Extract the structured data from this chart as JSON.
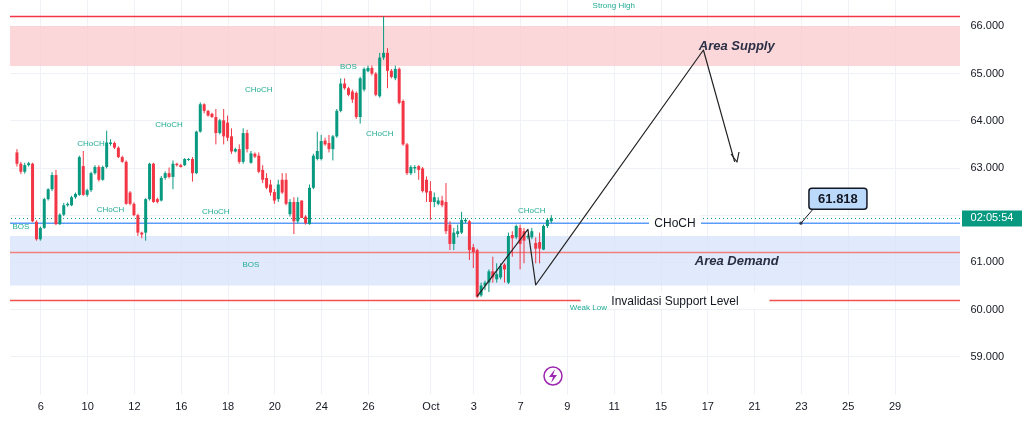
{
  "chart_data": {
    "type": "candlestick",
    "categories": [
      null,
      null,
      null,
      null,
      null,
      null,
      "6",
      null,
      null,
      null,
      null,
      null,
      null,
      null,
      null,
      null,
      null,
      null,
      "10",
      null,
      null,
      null,
      null,
      null,
      null,
      null,
      null,
      null,
      null,
      null,
      "12",
      null,
      null,
      null,
      null,
      null,
      null,
      null,
      null,
      null,
      null,
      null,
      "16",
      null,
      null,
      null,
      null,
      null,
      null,
      null,
      null,
      null,
      null,
      null,
      "18",
      null,
      null,
      null,
      null,
      null,
      null,
      null,
      null,
      null,
      null,
      null,
      "20",
      null,
      null,
      null,
      null,
      null,
      null,
      null,
      null,
      null,
      null,
      null,
      "24",
      null,
      null,
      null,
      null,
      null,
      null,
      null,
      null,
      null,
      null,
      null,
      "26",
      null,
      null,
      null,
      null,
      null,
      null,
      null,
      null,
      null,
      null,
      null,
      null,
      null,
      null,
      null,
      "Oct",
      null,
      null,
      null,
      null,
      null,
      null,
      null,
      null,
      null,
      null,
      "3",
      null,
      null,
      null,
      null,
      null,
      null,
      null,
      null,
      null,
      null,
      null,
      "7",
      null,
      null,
      null,
      null,
      null,
      null,
      null,
      null,
      null,
      null,
      null,
      "9",
      null,
      null,
      null,
      null,
      null,
      null,
      null,
      null,
      null,
      null,
      null,
      "11",
      null,
      null,
      null,
      null,
      null,
      null,
      null,
      null,
      null,
      null,
      null,
      "15",
      null,
      null,
      null,
      null,
      null,
      null,
      null,
      null,
      null,
      null,
      null,
      "17",
      null,
      null,
      null,
      null,
      null,
      null,
      null,
      null,
      null,
      null,
      null,
      "21",
      null,
      null,
      null,
      null,
      null,
      null,
      null,
      null,
      null,
      null,
      null,
      "23",
      null,
      null,
      null,
      null,
      null,
      null,
      null,
      null,
      null,
      null,
      null,
      "25",
      null,
      null,
      null,
      null,
      null,
      null,
      null,
      null,
      null,
      null,
      null,
      "29",
      null,
      null,
      null,
      null,
      null,
      null,
      null,
      null,
      null,
      null,
      null,
      null,
      null,
      null,
      null
    ],
    "ohlc": [
      [
        63.32,
        63.39,
        63.02,
        63.08
      ],
      [
        63.08,
        63.12,
        62.86,
        62.91
      ],
      [
        62.91,
        63.1,
        62.87,
        63.05
      ],
      [
        63.05,
        63.12,
        63.02,
        63.09
      ],
      [
        63.08,
        63.1,
        61.84,
        61.86
      ],
      [
        61.85,
        61.88,
        61.45,
        61.48
      ],
      [
        61.48,
        61.75,
        61.45,
        61.72
      ],
      [
        61.72,
        62.36,
        61.7,
        62.33
      ],
      [
        62.33,
        62.56,
        62.3,
        62.54
      ],
      [
        62.54,
        62.9,
        62.5,
        62.84
      ],
      [
        62.84,
        62.95,
        61.78,
        61.8
      ],
      [
        61.8,
        62.03,
        61.78,
        62.0
      ],
      [
        62.0,
        62.25,
        61.97,
        62.2
      ],
      [
        62.2,
        62.26,
        62.17,
        62.23
      ],
      [
        62.2,
        62.4,
        62.18,
        62.37
      ],
      [
        62.37,
        62.47,
        62.34,
        62.44
      ],
      [
        62.42,
        63.25,
        62.4,
        63.22
      ],
      [
        63.03,
        63.35,
        62.4,
        62.42
      ],
      [
        62.42,
        62.55,
        62.38,
        62.52
      ],
      [
        62.52,
        62.91,
        62.48,
        62.88
      ],
      [
        62.88,
        63.05,
        62.85,
        63.01
      ],
      [
        63.01,
        63.05,
        62.7,
        62.74
      ],
      [
        62.74,
        63.04,
        62.72,
        63.01
      ],
      [
        63.01,
        63.78,
        62.98,
        63.53
      ],
      [
        63.5,
        63.6,
        63.46,
        63.53
      ],
      [
        63.52,
        63.55,
        63.39,
        63.42
      ],
      [
        63.42,
        63.45,
        63.2,
        63.22
      ],
      [
        63.22,
        63.25,
        63.1,
        63.12
      ],
      [
        63.12,
        63.15,
        62.21,
        62.23
      ],
      [
        62.47,
        62.5,
        62.2,
        62.23
      ],
      [
        62.23,
        62.26,
        61.97,
        61.99
      ],
      [
        61.99,
        62.02,
        61.55,
        61.62
      ],
      [
        61.62,
        61.64,
        61.5,
        61.58
      ],
      [
        61.62,
        62.35,
        61.45,
        62.33
      ],
      [
        62.33,
        63.1,
        62.3,
        63.08
      ],
      [
        63.08,
        63.1,
        62.25,
        62.27
      ],
      [
        62.33,
        62.36,
        62.24,
        62.27
      ],
      [
        62.3,
        62.82,
        62.28,
        62.78
      ],
      [
        62.78,
        62.92,
        62.74,
        62.88
      ],
      [
        62.88,
        63.0,
        62.77,
        62.8
      ],
      [
        62.8,
        63.15,
        62.54,
        63.08
      ],
      [
        63.08,
        63.1,
        63.02,
        63.05
      ],
      [
        63.05,
        63.08,
        63.0,
        63.01
      ],
      [
        63.05,
        63.2,
        63.03,
        63.18
      ],
      [
        63.16,
        63.2,
        63.14,
        63.18
      ],
      [
        63.18,
        63.22,
        62.7,
        62.88
      ],
      [
        62.88,
        63.78,
        62.86,
        63.76
      ],
      [
        63.76,
        64.38,
        63.74,
        64.34
      ],
      [
        64.34,
        64.36,
        64.15,
        64.2
      ],
      [
        64.2,
        64.22,
        64.08,
        64.1
      ],
      [
        64.14,
        64.16,
        64.05,
        64.07
      ],
      [
        64.07,
        64.24,
        63.49,
        63.73
      ],
      [
        63.73,
        64.03,
        63.7,
        64.0
      ],
      [
        64.0,
        64.24,
        63.49,
        63.66
      ],
      [
        63.95,
        64.1,
        63.56,
        63.63
      ],
      [
        63.66,
        63.83,
        63.29,
        63.34
      ],
      [
        63.34,
        63.42,
        63.32,
        63.39
      ],
      [
        63.39,
        63.49,
        63.08,
        63.12
      ],
      [
        63.12,
        63.83,
        63.08,
        63.73
      ],
      [
        63.73,
        63.8,
        63.32,
        63.39
      ],
      [
        63.1,
        63.35,
        63.08,
        63.3
      ],
      [
        63.29,
        63.32,
        63.2,
        63.23
      ],
      [
        63.25,
        63.32,
        62.88,
        62.91
      ],
      [
        62.95,
        63.05,
        62.67,
        62.74
      ],
      [
        62.78,
        62.88,
        62.54,
        62.57
      ],
      [
        62.64,
        62.74,
        62.4,
        62.47
      ],
      [
        62.48,
        62.54,
        62.23,
        62.3
      ],
      [
        62.33,
        62.74,
        62.27,
        62.64
      ],
      [
        62.74,
        62.88,
        62.44,
        62.47
      ],
      [
        62.74,
        62.88,
        62.2,
        62.23
      ],
      [
        62.01,
        62.33,
        61.96,
        62.27
      ],
      [
        62.27,
        62.37,
        61.59,
        61.86
      ],
      [
        61.86,
        62.37,
        61.82,
        62.27
      ],
      [
        62.3,
        62.3,
        61.93,
        61.93
      ],
      [
        61.96,
        61.99,
        61.79,
        61.82
      ],
      [
        61.8,
        62.64,
        61.79,
        62.57
      ],
      [
        62.57,
        63.29,
        62.54,
        63.25
      ],
      [
        63.18,
        63.76,
        63.15,
        63.35
      ],
      [
        63.18,
        63.69,
        63.15,
        63.56
      ],
      [
        63.57,
        63.63,
        63.46,
        63.49
      ],
      [
        63.52,
        63.69,
        63.32,
        63.39
      ],
      [
        63.39,
        63.69,
        63.15,
        63.66
      ],
      [
        63.66,
        64.24,
        63.63,
        64.2
      ],
      [
        64.2,
        64.89,
        64.17,
        64.78
      ],
      [
        64.78,
        64.89,
        64.65,
        64.68
      ],
      [
        64.68,
        64.71,
        64.51,
        64.54
      ],
      [
        64.61,
        64.65,
        64.37,
        64.44
      ],
      [
        64.58,
        64.61,
        64.03,
        64.07
      ],
      [
        64.07,
        64.92,
        63.93,
        64.89
      ],
      [
        64.65,
        65.12,
        64.61,
        65.09
      ],
      [
        65.04,
        65.16,
        65.02,
        65.11
      ],
      [
        65.11,
        65.16,
        64.95,
        64.99
      ],
      [
        64.99,
        65.02,
        64.51,
        64.54
      ],
      [
        64.51,
        65.43,
        64.48,
        65.33
      ],
      [
        65.33,
        66.2,
        65.28,
        65.43
      ],
      [
        65.43,
        65.53,
        64.68,
        65.05
      ],
      [
        65.05,
        65.09,
        64.89,
        64.92
      ],
      [
        64.89,
        65.16,
        64.85,
        65.09
      ],
      [
        65.09,
        65.12,
        64.34,
        64.37
      ],
      [
        64.41,
        64.44,
        63.46,
        63.49
      ],
      [
        63.49,
        63.52,
        62.84,
        62.88
      ],
      [
        62.88,
        63.05,
        62.84,
        63.01
      ],
      [
        62.98,
        63.05,
        62.88,
        63.01
      ],
      [
        63.03,
        63.05,
        62.74,
        62.95
      ],
      [
        62.98,
        63.01,
        62.47,
        62.5
      ],
      [
        62.74,
        62.81,
        62.27,
        62.47
      ],
      [
        62.5,
        62.71,
        61.89,
        62.27
      ],
      [
        62.27,
        62.47,
        62.16,
        62.37
      ],
      [
        62.23,
        62.37,
        62.2,
        62.3
      ],
      [
        62.3,
        62.4,
        62.16,
        62.2
      ],
      [
        62.27,
        62.67,
        61.59,
        61.65
      ],
      [
        61.79,
        61.86,
        61.25,
        61.38
      ],
      [
        61.38,
        61.72,
        61.25,
        61.62
      ],
      [
        61.59,
        61.79,
        61.52,
        61.65
      ],
      [
        61.62,
        62.06,
        61.59,
        61.89
      ],
      [
        61.86,
        61.93,
        61.82,
        61.89
      ],
      [
        61.86,
        61.89,
        61.04,
        61.25
      ],
      [
        61.31,
        61.38,
        60.87,
        61.21
      ],
      [
        61.25,
        61.28,
        60.23,
        60.26
      ],
      [
        60.29,
        60.56,
        60.26,
        60.5
      ],
      [
        60.5,
        60.6,
        60.4,
        60.56
      ],
      [
        60.56,
        60.84,
        60.36,
        60.8
      ],
      [
        60.8,
        61.11,
        60.56,
        60.67
      ],
      [
        60.63,
        60.97,
        60.56,
        60.74
      ],
      [
        60.67,
        60.97,
        60.63,
        60.91
      ],
      [
        60.94,
        60.97,
        60.56,
        60.84
      ],
      [
        60.56,
        61.62,
        60.53,
        61.55
      ],
      [
        61.57,
        61.65,
        61.11,
        61.5
      ],
      [
        61.52,
        61.79,
        61.48,
        61.76
      ],
      [
        61.72,
        61.79,
        60.84,
        61.38
      ],
      [
        61.65,
        61.72,
        60.97,
        61.45
      ],
      [
        61.52,
        61.59,
        61.48,
        61.55
      ],
      [
        61.52,
        61.72,
        61.48,
        61.65
      ],
      [
        61.4,
        61.52,
        60.97,
        61.28
      ],
      [
        61.42,
        61.62,
        60.97,
        61.28
      ],
      [
        61.26,
        61.79,
        61.25,
        61.76
      ],
      [
        61.76,
        61.93,
        61.72,
        61.89
      ],
      [
        61.86,
        61.99,
        61.82,
        61.93
      ],
      null,
      null,
      null,
      null,
      null,
      null,
      null,
      null,
      null,
      null,
      null,
      null,
      null,
      null,
      null,
      null,
      null,
      null,
      null,
      null,
      null,
      null,
      null,
      null,
      null,
      null,
      null,
      null,
      null,
      null,
      null,
      null,
      null,
      null,
      null,
      null,
      null,
      null,
      null,
      null,
      null,
      null,
      null,
      null,
      null,
      null,
      null,
      null,
      null,
      null,
      null,
      null,
      null,
      null,
      null,
      null,
      null,
      null,
      null,
      null,
      null,
      null,
      null,
      null,
      null,
      null,
      null,
      null,
      null,
      null,
      null,
      null,
      null,
      null,
      null,
      null,
      null,
      null,
      null,
      null,
      null,
      null,
      null,
      null,
      null,
      null,
      null,
      null,
      null,
      null,
      null,
      null,
      null,
      null,
      null,
      null,
      null,
      null,
      null,
      null,
      null,
      null,
      null
    ],
    "series": [
      {
        "type": "line",
        "color": "#222222",
        "values": [
          null,
          null,
          null,
          null,
          null,
          null,
          null,
          null,
          null,
          null,
          null,
          null,
          null,
          null,
          null,
          null,
          null,
          null,
          null,
          null,
          null,
          null,
          null,
          null,
          null,
          null,
          null,
          null,
          null,
          null,
          null,
          null,
          null,
          null,
          null,
          null,
          null,
          null,
          null,
          null,
          null,
          null,
          null,
          null,
          null,
          null,
          null,
          null,
          null,
          null,
          null,
          null,
          null,
          null,
          null,
          null,
          null,
          null,
          null,
          null,
          null,
          null,
          null,
          null,
          null,
          null,
          null,
          null,
          null,
          null,
          null,
          null,
          null,
          null,
          null,
          null,
          null,
          null,
          null,
          null,
          null,
          null,
          null,
          null,
          null,
          null,
          null,
          null,
          null,
          null,
          null,
          null,
          null,
          null,
          null,
          null,
          null,
          null,
          null,
          null,
          null,
          null,
          null,
          null,
          null,
          null,
          null,
          null,
          null,
          null,
          null,
          null,
          null,
          null,
          null,
          null,
          null,
          null,
          60.27,
          null,
          null,
          null,
          null,
          null,
          null,
          null,
          null,
          null,
          null,
          null,
          null,
          61.69,
          null,
          60.51,
          null,
          null,
          null,
          null,
          null,
          null,
          null,
          null,
          null,
          null,
          null,
          null,
          null,
          null,
          null,
          null,
          null,
          null,
          null,
          null,
          null,
          null,
          null,
          null,
          null,
          null,
          null,
          null,
          null,
          null,
          null,
          null,
          null,
          null,
          null,
          null,
          null,
          null,
          null,
          null,
          null,
          null,
          65.49,
          null,
          null,
          null,
          null,
          null,
          null,
          null,
          63.12,
          null,
          null,
          null,
          null,
          null,
          null,
          null,
          null,
          null,
          null,
          null,
          null,
          null,
          null,
          null,
          null,
          null,
          null,
          null,
          null,
          null,
          null,
          null,
          null,
          null,
          null,
          null,
          null,
          null,
          null,
          null,
          null,
          null,
          null,
          null,
          null,
          null,
          null,
          null,
          null,
          null,
          null,
          null,
          null,
          null,
          null,
          null,
          null,
          null,
          null,
          null,
          null,
          null,
          null,
          null,
          null
        ]
      }
    ],
    "ylim": [
      58.2,
      66.55
    ],
    "yticks": [
      {
        "value": 59,
        "label": "59.000"
      },
      {
        "value": 60,
        "label": "60.000"
      },
      {
        "value": 61,
        "label": "61.000"
      },
      {
        "value": 62,
        "label": null
      },
      {
        "value": 63,
        "label": "63.000"
      },
      {
        "value": 64,
        "label": "64.000"
      },
      {
        "value": 65,
        "label": "65.000"
      },
      {
        "value": 66,
        "label": "66.000"
      }
    ],
    "grid": true,
    "bands": [
      {
        "axis": "y",
        "from": 65.15,
        "to": 66.0,
        "label": "Area Supply",
        "color": "#f9c9cc"
      },
      {
        "axis": "y",
        "from": 60.5,
        "to": 61.55,
        "label": "Area Demand",
        "color": "#d6e3fb"
      }
    ],
    "ref_lines": [
      {
        "axis": "y",
        "value": 61.818,
        "label": "CHoCH",
        "color": "#5b9cf6"
      },
      {
        "axis": "y",
        "value": 60.18,
        "label": "Invalidasi Support Level",
        "color": "#f05050"
      },
      {
        "axis": "y",
        "value": 61.2,
        "label": null,
        "color": "#f08080"
      },
      {
        "axis": "y",
        "value": 66.2,
        "label": null,
        "color": "#f23645"
      },
      {
        "axis": "y",
        "value": 61.92,
        "label": null,
        "color": "#089981",
        "line_style": "dotted"
      }
    ],
    "annotations": [
      "Strong High",
      "CHoCH",
      "CHoCH",
      "CHoCH",
      "CHoCH",
      "CHoCH",
      "CHoCH",
      "CHoCH",
      "BOS",
      "BOS",
      "BOS",
      "Weak Low",
      "02:05:54",
      {
        "text": "61.818",
        "y": 61.818
      }
    ]
  }
}
